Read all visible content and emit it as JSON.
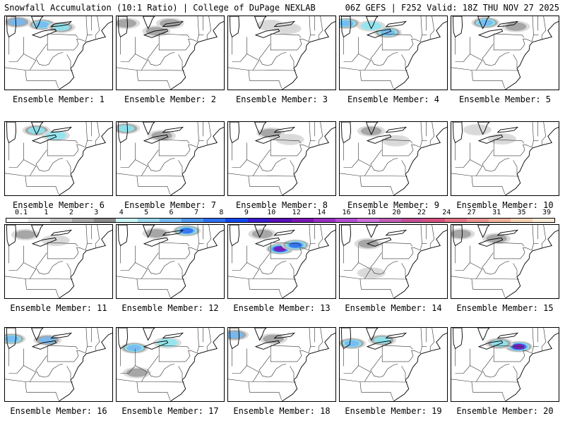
{
  "header": {
    "left": "Snowfall Accumulation (10:1 Ratio) | College of DuPage NEXLAB",
    "right": "06Z GEFS | F252 Valid: 18Z THU NOV 27 2025"
  },
  "legend": {
    "labels": [
      "0.1",
      "1",
      "2",
      "3",
      "4",
      "5",
      "6",
      "7",
      "8",
      "9",
      "10",
      "12",
      "14",
      "16",
      "18",
      "20",
      "22",
      "24",
      "27",
      "31",
      "35",
      "39"
    ],
    "colors": [
      "#ffffff",
      "#e6e6e6",
      "#c8c8c8",
      "#a8a8a8",
      "#8a8a8a",
      "#ccf5f5",
      "#9ad8f0",
      "#74b9f2",
      "#4f95ee",
      "#2f6ff0",
      "#1446f0",
      "#3b1cd0",
      "#5a10b8",
      "#7b16b4",
      "#9a2fc4",
      "#b44fd2",
      "#cd6fd8",
      "#c25fb6",
      "#c65095",
      "#d8527f",
      "#e37386",
      "#e8938f",
      "#efb39e",
      "#f4d2b4",
      "#faebd7"
    ]
  },
  "members": [
    {
      "label": "Ensemble Member: 1",
      "snow": [
        {
          "lon": -86.0,
          "lat": 44.0,
          "intensity": 0.55
        },
        {
          "lon": -81.5,
          "lat": 43.6,
          "intensity": 0.6
        },
        {
          "lon": -78.0,
          "lat": 43.2,
          "intensity": 0.5
        }
      ]
    },
    {
      "label": "Ensemble Member: 2",
      "snow": [
        {
          "lon": -86.5,
          "lat": 43.8,
          "intensity": 0.35
        },
        {
          "lon": -81.0,
          "lat": 42.6,
          "intensity": 0.35
        },
        {
          "lon": -78.5,
          "lat": 43.8,
          "intensity": 0.3
        }
      ]
    },
    {
      "label": "Ensemble Member: 3",
      "snow": [
        {
          "lon": -80.5,
          "lat": 43.5,
          "intensity": 0.2
        },
        {
          "lon": -77.5,
          "lat": 43.0,
          "intensity": 0.2
        }
      ]
    },
    {
      "label": "Ensemble Member: 4",
      "snow": [
        {
          "lon": -87.0,
          "lat": 43.8,
          "intensity": 0.6
        },
        {
          "lon": -79.5,
          "lat": 42.4,
          "intensity": 0.6
        },
        {
          "lon": -82.5,
          "lat": 43.4,
          "intensity": 0.4
        }
      ]
    },
    {
      "label": "Ensemble Member: 5",
      "snow": [
        {
          "lon": -82.0,
          "lat": 43.9,
          "intensity": 0.6
        },
        {
          "lon": -76.5,
          "lat": 43.3,
          "intensity": 0.35
        }
      ]
    },
    {
      "label": "Ensemble Member: 6",
      "snow": [
        {
          "lon": -82.5,
          "lat": 43.6,
          "intensity": 0.45
        },
        {
          "lon": -79.0,
          "lat": 42.8,
          "intensity": 0.4
        }
      ]
    },
    {
      "label": "Ensemble Member: 7",
      "snow": [
        {
          "lon": -86.5,
          "lat": 43.9,
          "intensity": 0.45
        },
        {
          "lon": -80.0,
          "lat": 42.8,
          "intensity": 0.35
        }
      ]
    },
    {
      "label": "Ensemble Member: 8",
      "snow": [
        {
          "lon": -80.5,
          "lat": 43.2,
          "intensity": 0.3
        },
        {
          "lon": -77.0,
          "lat": 42.2,
          "intensity": 0.2
        }
      ]
    },
    {
      "label": "Ensemble Member: 9",
      "snow": [
        {
          "lon": -82.5,
          "lat": 43.5,
          "intensity": 0.3
        },
        {
          "lon": -78.0,
          "lat": 42.0,
          "intensity": 0.2
        }
      ]
    },
    {
      "label": "Ensemble Member: 10",
      "snow": [
        {
          "lon": -83.5,
          "lat": 43.7,
          "intensity": 0.2
        },
        {
          "lon": -79.0,
          "lat": 42.3,
          "intensity": 0.2
        }
      ]
    },
    {
      "label": "Ensemble Member: 11",
      "snow": [
        {
          "lon": -84.5,
          "lat": 43.4,
          "intensity": 0.3
        },
        {
          "lon": -79.0,
          "lat": 42.5,
          "intensity": 0.2
        }
      ]
    },
    {
      "label": "Ensemble Member: 12",
      "snow": [
        {
          "lon": -81.0,
          "lat": 43.6,
          "intensity": 0.35
        },
        {
          "lon": -75.5,
          "lat": 44.0,
          "intensity": 0.75
        }
      ]
    },
    {
      "label": "Ensemble Member: 13",
      "snow": [
        {
          "lon": -78.8,
          "lat": 41.2,
          "intensity": 0.95
        },
        {
          "lon": -76.0,
          "lat": 41.8,
          "intensity": 0.8
        },
        {
          "lon": -82.0,
          "lat": 43.5,
          "intensity": 0.3
        }
      ]
    },
    {
      "label": "Ensemble Member: 14",
      "snow": [
        {
          "lon": -83.0,
          "lat": 42.0,
          "intensity": 0.35
        },
        {
          "lon": -82.5,
          "lat": 37.5,
          "intensity": 0.2
        }
      ]
    },
    {
      "label": "Ensemble Member: 15",
      "snow": [
        {
          "lon": -86.5,
          "lat": 43.5,
          "intensity": 0.3
        },
        {
          "lon": -80.0,
          "lat": 42.8,
          "intensity": 0.3
        }
      ]
    },
    {
      "label": "Ensemble Member: 16",
      "snow": [
        {
          "lon": -87.0,
          "lat": 43.2,
          "intensity": 0.6
        },
        {
          "lon": -80.5,
          "lat": 43.0,
          "intensity": 0.55
        }
      ]
    },
    {
      "label": "Ensemble Member: 17",
      "snow": [
        {
          "lon": -85.0,
          "lat": 41.8,
          "intensity": 0.6
        },
        {
          "lon": -79.0,
          "lat": 42.6,
          "intensity": 0.4
        },
        {
          "lon": -84.5,
          "lat": 38.0,
          "intensity": 0.3
        }
      ]
    },
    {
      "label": "Ensemble Member: 18",
      "snow": [
        {
          "lon": -87.0,
          "lat": 43.8,
          "intensity": 0.55
        },
        {
          "lon": -80.0,
          "lat": 43.2,
          "intensity": 0.3
        }
      ]
    },
    {
      "label": "Ensemble Member: 19",
      "snow": [
        {
          "lon": -86.0,
          "lat": 42.5,
          "intensity": 0.6
        },
        {
          "lon": -80.5,
          "lat": 43.0,
          "intensity": 0.5
        }
      ]
    },
    {
      "label": "Ensemble Member: 20",
      "snow": [
        {
          "lon": -76.0,
          "lat": 42.0,
          "intensity": 0.95
        },
        {
          "lon": -79.5,
          "lat": 42.5,
          "intensity": 0.5
        }
      ]
    }
  ]
}
